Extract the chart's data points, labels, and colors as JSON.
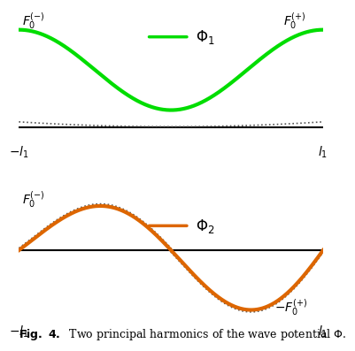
{
  "green_color": "#00dd00",
  "orange_color": "#dd6600",
  "dotted_color": "#555555",
  "bg_color": "#ffffff",
  "phi1_amp": 0.78,
  "phi2_amp": 0.9,
  "caption": "Fig. 4.   Two principal harmonics of the wave potential $\\Phi$."
}
